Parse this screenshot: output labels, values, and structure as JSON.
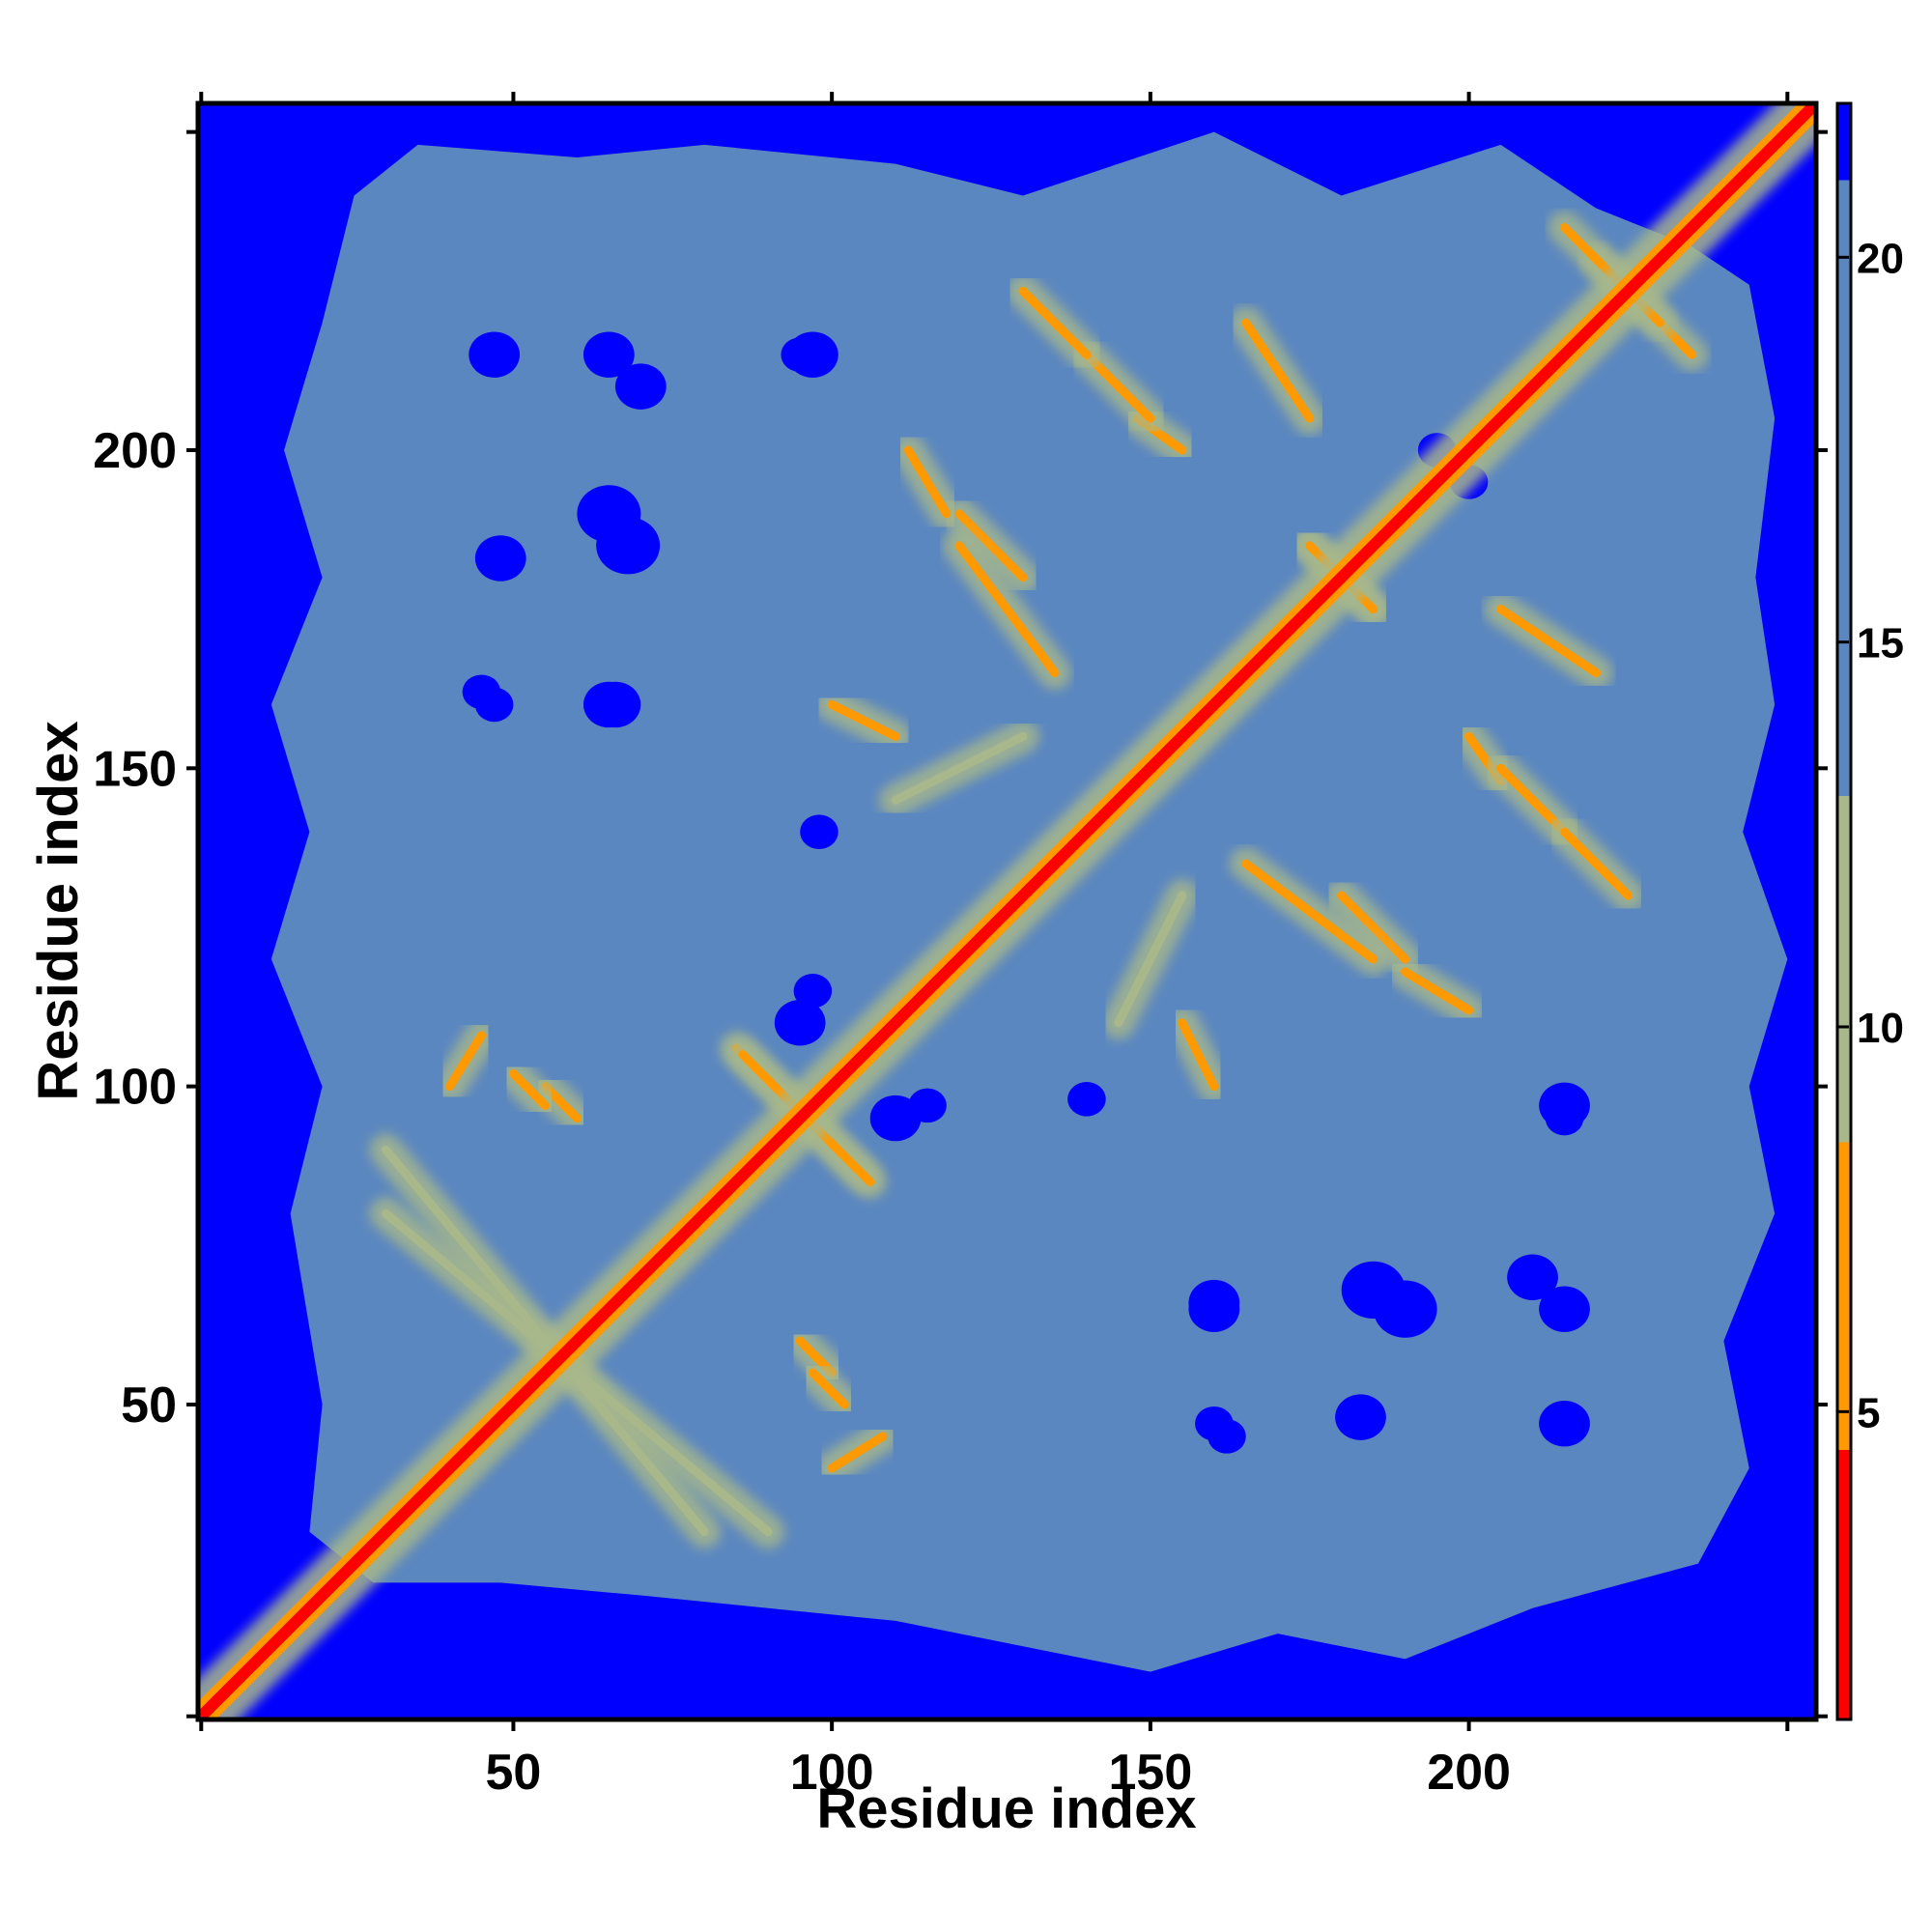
{
  "chart_data": {
    "type": "heatmap",
    "title": "",
    "xlabel": "Residue index",
    "ylabel": "Residue index",
    "xlim": [
      1,
      254
    ],
    "ylim": [
      1,
      254
    ],
    "x_ticks": [
      50,
      100,
      150,
      200
    ],
    "y_ticks": [
      50,
      100,
      150,
      200
    ],
    "x_tick_labels": [
      "50",
      "100",
      "150",
      "200"
    ],
    "y_tick_labels": [
      "50",
      "100",
      "150",
      "200"
    ],
    "colorbar": {
      "range": [
        1,
        22
      ],
      "ticks": [
        5,
        10,
        15,
        20
      ],
      "tick_labels": [
        "5",
        "10",
        "15",
        "20"
      ],
      "bands": [
        {
          "from": 1,
          "to": 4.5,
          "color": "#ff0000"
        },
        {
          "from": 4.5,
          "to": 8.5,
          "color": "#ff9900"
        },
        {
          "from": 8.5,
          "to": 13,
          "color": "#a8b88a"
        },
        {
          "from": 13,
          "to": 21,
          "color": "#5b87c0"
        },
        {
          "from": 21,
          "to": 22,
          "color": "#0000ff"
        }
      ]
    },
    "value_description": "Symmetric residue-residue distance matrix (Angstrom). Diagonal ~1-4 (red); nearby contacts 5-8 (orange); 9-12 (pale green); 13-20 (steel blue); >20 (blue).",
    "background_value": 22,
    "globule_value": 16,
    "diagonal": {
      "from": 1,
      "to": 254,
      "value": 2
    },
    "contact_lines": [
      {
        "from": [
          175,
          185
        ],
        "to": [
          185,
          175
        ],
        "value": 6
      },
      {
        "from": [
          155,
          200
        ],
        "to": [
          148,
          205
        ],
        "value": 7
      },
      {
        "from": [
          130,
          180
        ],
        "to": [
          120,
          190
        ],
        "value": 7
      },
      {
        "from": [
          205,
          150
        ],
        "to": [
          215,
          140
        ],
        "value": 7
      },
      {
        "from": [
          205,
          175
        ],
        "to": [
          220,
          165
        ],
        "value": 7
      },
      {
        "from": [
          140,
          215
        ],
        "to": [
          130,
          225
        ],
        "value": 7
      },
      {
        "from": [
          165,
          135
        ],
        "to": [
          185,
          120
        ],
        "value": 7
      },
      {
        "from": [
          190,
          118
        ],
        "to": [
          200,
          112
        ],
        "value": 7
      },
      {
        "from": [
          85,
          106
        ],
        "to": [
          105,
          86
        ],
        "value": 6
      },
      {
        "from": [
          55,
          100
        ],
        "to": [
          60,
          95
        ],
        "value": 7
      },
      {
        "from": [
          97,
          55
        ],
        "to": [
          102,
          50
        ],
        "value": 7
      },
      {
        "from": [
          100,
          40
        ],
        "to": [
          108,
          45
        ],
        "value": 8
      },
      {
        "from": [
          30,
          90
        ],
        "to": [
          80,
          30
        ],
        "value": 10
      },
      {
        "from": [
          145,
          110
        ],
        "to": [
          155,
          130
        ],
        "value": 10
      },
      {
        "from": [
          100,
          160
        ],
        "to": [
          110,
          155
        ],
        "value": 7
      },
      {
        "from": [
          220,
          230
        ],
        "to": [
          235,
          215
        ],
        "value": 6
      }
    ],
    "void_blobs": [
      {
        "x": 65,
        "y": 160,
        "r": 4
      },
      {
        "x": 45,
        "y": 162,
        "r": 3
      },
      {
        "x": 65,
        "y": 190,
        "r": 5
      },
      {
        "x": 95,
        "y": 110,
        "r": 4
      },
      {
        "x": 115,
        "y": 97,
        "r": 3
      },
      {
        "x": 160,
        "y": 66,
        "r": 4
      },
      {
        "x": 185,
        "y": 68,
        "r": 5
      },
      {
        "x": 210,
        "y": 70,
        "r": 4
      },
      {
        "x": 160,
        "y": 47,
        "r": 3
      },
      {
        "x": 183,
        "y": 48,
        "r": 4
      },
      {
        "x": 215,
        "y": 47,
        "r": 4
      },
      {
        "x": 215,
        "y": 97,
        "r": 4
      },
      {
        "x": 140,
        "y": 98,
        "r": 3
      },
      {
        "x": 65,
        "y": 215,
        "r": 4
      },
      {
        "x": 95,
        "y": 215,
        "r": 3
      },
      {
        "x": 200,
        "y": 195,
        "r": 3
      }
    ]
  }
}
